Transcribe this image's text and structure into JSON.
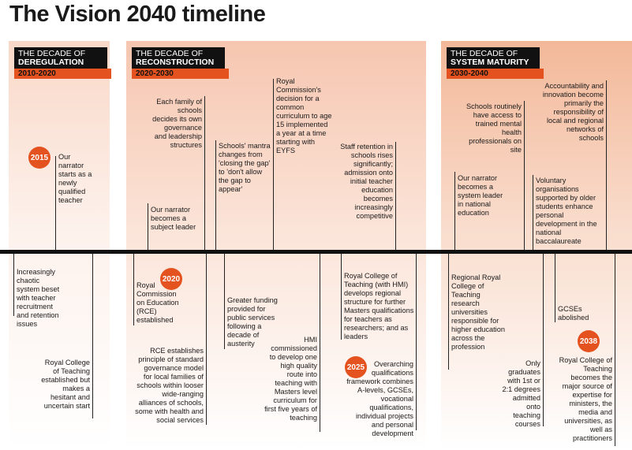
{
  "title": "The Vision 2040 timeline",
  "decades": [
    {
      "line1": "THE DECADE OF",
      "line2": "DEREGULATION",
      "years": "2010-2020"
    },
    {
      "line1": "THE DECADE OF",
      "line2": "RECONSTRUCTION",
      "years": "2020-2030"
    },
    {
      "line1": "THE DECADE OF",
      "line2": "SYSTEM MATURITY",
      "years": "2030-2040"
    }
  ],
  "badges": [
    "2015",
    "2020",
    "2025",
    "2038"
  ],
  "colors": {
    "accent": "#e4521f",
    "panel1": "#f9d8c8",
    "panel2": "#f6c6b0",
    "panel3": "#f3b899",
    "heading": "#111111"
  },
  "events_above": {
    "narrator_teacher": "Our narrator starts as a newly qualified teacher",
    "subject_leader": "Our narrator becomes a subject leader",
    "family_of_schools": "Each family of schools decides its own governance and leadership structures",
    "mantra": "Schools' mantra changes from 'closing the gap' to 'don't allow the gap to appear'",
    "royal_commission": "Royal Commission's decision for a common curriculum to age 15 implemented a year at a time starting with EYFS",
    "staff_retention": "Staff retention in schools rises significantly; admission onto initial teacher education becomes increasingly competitive",
    "system_leader": "Our narrator becomes a system leader in national education",
    "mental_health": "Schools routinely have access to trained mental health professionals on site",
    "accountability": "Accountability and innovation become primarily the responsibility of local and regional networks of schools",
    "voluntary": "Voluntary organisations supported by older students enhance personal development in the national baccalaureate"
  },
  "events_below": {
    "chaotic": "Increasingly chaotic system beset with teacher recruitment and retention issues",
    "rct_established": "Royal College of Teaching established but makes a hesitant and uncertain start",
    "rce": "Royal Commission on Education (RCE) established",
    "rce_principle": "RCE establishes principle of standard governance model for local families of schools within looser wide-ranging alliances of schools, some with health and social services",
    "funding": "Greater funding provided for public services following a decade of austerity",
    "hmi": "HMI commissioned to develop one high quality route into teaching with Masters level curriculum for first five years of teaching",
    "rct_hmi": "Royal College of Teaching (with HMI) develops regional structure for further Masters qualifications for teachers as researchers; and as leaders",
    "qualifications": "Overarching qualifications framework combines A-levels, GCSEs, vocational qualifications, individual projects and personal development",
    "regional_college": "Regional Royal College of Teaching research universities responsible for higher education across the profession",
    "graduates": "Only graduates with 1st or 2:1 degrees admitted onto teaching courses",
    "gcses": "GCSEs abolished",
    "rct_expertise": "Royal College of Teaching becomes the major source of expertise for ministers, the media and universities, as well as practitioners"
  }
}
